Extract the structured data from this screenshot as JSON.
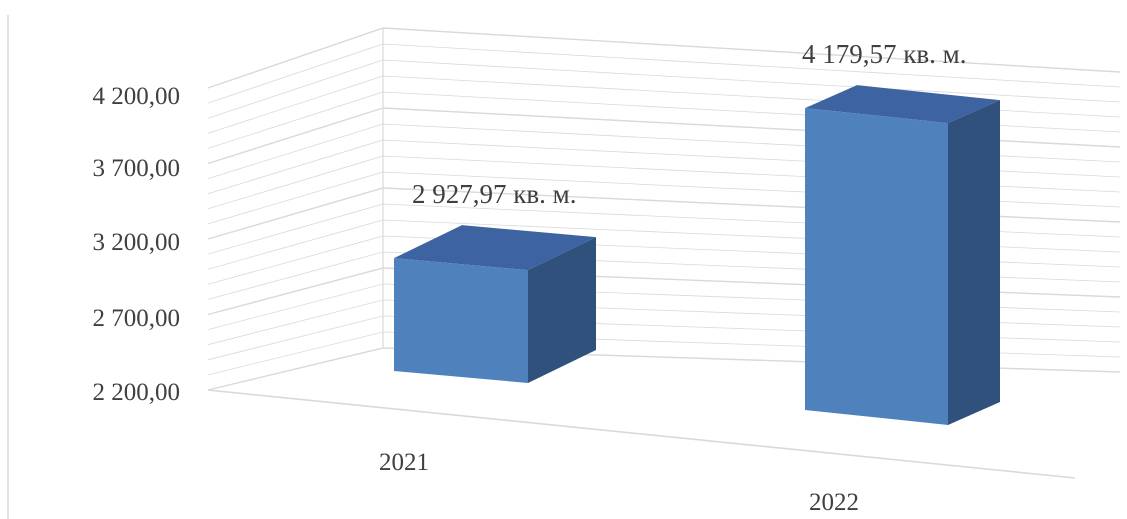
{
  "chart_data": {
    "type": "bar",
    "title": "",
    "xlabel": "",
    "ylabel": "",
    "categories": [
      "2021",
      "2022"
    ],
    "values": [
      2927.97,
      4179.57
    ],
    "data_labels": [
      "2 927,97 кв. м.",
      "4 179,57 кв. м."
    ],
    "ylim": [
      2200,
      4200
    ],
    "y_ticks": [
      "2 200,00",
      "2 700,00",
      "3 200,00",
      "3 700,00",
      "4 200,00"
    ],
    "grid": true,
    "legend": "none",
    "style": "3d-column",
    "colors": {
      "front": "#4f81bd",
      "top": "#3d64a0",
      "side": "#30517c",
      "grid": "#d9d9d9"
    }
  }
}
